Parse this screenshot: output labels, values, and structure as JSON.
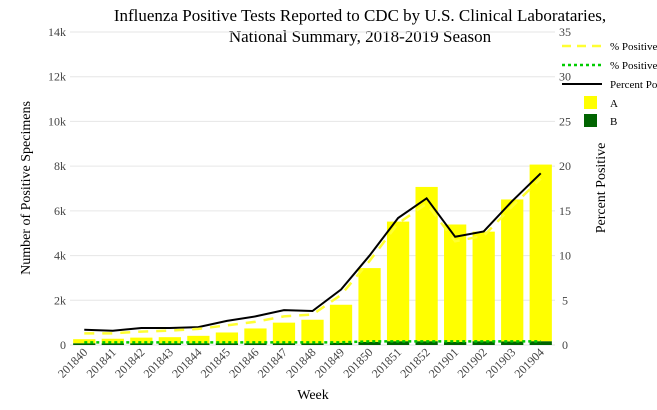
{
  "chart_data": {
    "type": "bar",
    "title_lines": [
      "Influenza Positive Tests Reported to CDC by U.S. Clinical Laborataries,",
      "National Summary, 2018-2019 Season"
    ],
    "xlabel": "Week",
    "ylabel_left": "Number of Positive Specimens",
    "ylabel_right": "Percent Positive",
    "ylim_left": [
      0,
      14000
    ],
    "ylim_right": [
      0,
      35
    ],
    "yticks_left": [
      "0",
      "2k",
      "4k",
      "6k",
      "8k",
      "10k",
      "12k",
      "14k"
    ],
    "yticks_right": [
      "0",
      "5",
      "10",
      "15",
      "20",
      "25",
      "30",
      "35"
    ],
    "grid": true,
    "categories": [
      "201840",
      "201841",
      "201842",
      "201843",
      "201844",
      "201845",
      "201846",
      "201847",
      "201848",
      "201849",
      "201850",
      "201851",
      "201852",
      "201901",
      "201902",
      "201903",
      "201904"
    ],
    "series": [
      {
        "name": "A",
        "kind": "bar",
        "color": "#ffff00",
        "values": [
          180,
          200,
          250,
          270,
          330,
          480,
          660,
          920,
          1050,
          1700,
          3300,
          5350,
          6900,
          5250,
          4900,
          6350,
          7900
        ]
      },
      {
        "name": "B",
        "kind": "bar",
        "color": "#006400",
        "values": [
          80,
          80,
          80,
          80,
          80,
          80,
          80,
          80,
          80,
          100,
          140,
          170,
          170,
          140,
          170,
          160,
          170
        ]
      },
      {
        "name": "Percent Positive",
        "kind": "line",
        "axis": "right",
        "color": "#000000",
        "values": [
          1.7,
          1.6,
          1.9,
          1.9,
          2.0,
          2.7,
          3.2,
          3.9,
          3.8,
          6.2,
          10.0,
          14.2,
          16.4,
          12.1,
          12.7,
          16.1,
          19.2
        ]
      },
      {
        "name": "% Positive",
        "label": "% Positive Flu A",
        "kind": "dashed-line",
        "axis": "right",
        "color": "#ffff33",
        "values": [
          1.3,
          1.3,
          1.5,
          1.6,
          1.8,
          2.2,
          2.6,
          3.2,
          3.4,
          5.6,
          9.4,
          13.6,
          15.8,
          11.6,
          12.2,
          15.5,
          18.6
        ]
      },
      {
        "name": "% Positive",
        "label": "% Positive Flu B",
        "kind": "dotted-line",
        "axis": "right",
        "color": "#00cc00",
        "values": [
          0.3,
          0.3,
          0.3,
          0.3,
          0.3,
          0.3,
          0.3,
          0.3,
          0.3,
          0.3,
          0.4,
          0.4,
          0.4,
          0.4,
          0.4,
          0.4,
          0.4
        ]
      }
    ],
    "legend": {
      "placement": "top-right",
      "items": [
        {
          "label": "% Positive",
          "style": "dashed",
          "color": "#ffff33"
        },
        {
          "label": "% Positive",
          "style": "dotted",
          "color": "#00cc00"
        },
        {
          "label": "Percent Positive",
          "style": "line",
          "color": "#000000"
        },
        {
          "label": "A",
          "style": "box",
          "color": "#ffff00"
        },
        {
          "label": "B",
          "style": "box",
          "color": "#006400"
        }
      ]
    }
  }
}
